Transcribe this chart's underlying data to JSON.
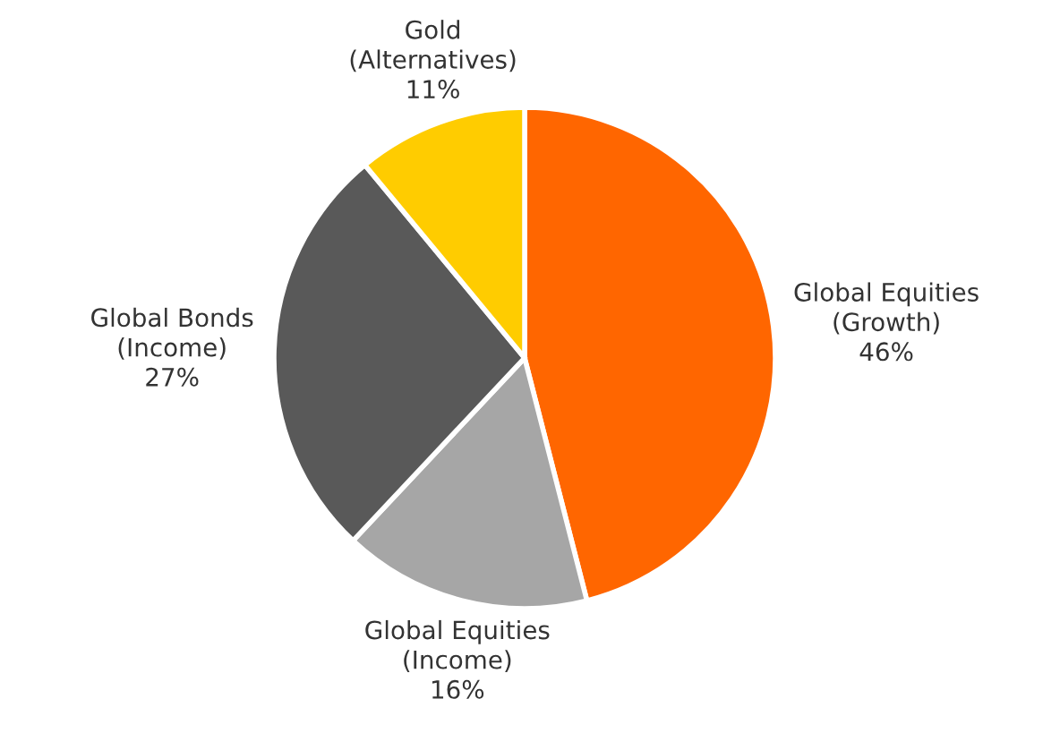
{
  "chart_data": {
    "type": "pie",
    "categories": [
      "Global Equities\n(Growth)",
      "Global Equities\n(Income)",
      "Global Bonds\n(Income)",
      "Gold\n(Alternatives)"
    ],
    "values": [
      46,
      16,
      27,
      11
    ],
    "value_labels": [
      "46%",
      "16%",
      "27%",
      "11%"
    ],
    "colors": [
      "#ff6600",
      "#a6a6a6",
      "#595959",
      "#ffcc00"
    ]
  }
}
